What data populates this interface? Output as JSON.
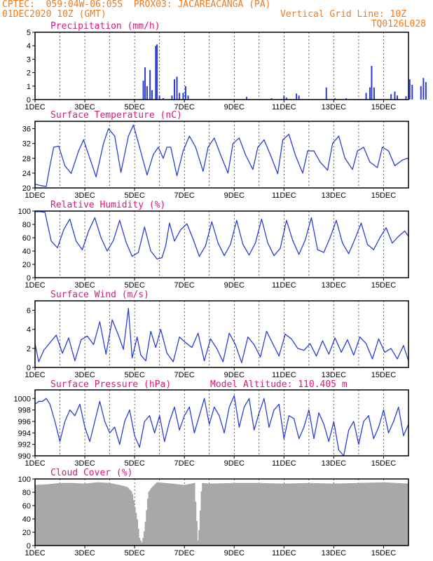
{
  "header": {
    "line1": "CPTEC:  059:04W-06:05S  PROX03: JACAREACANGA (PA)",
    "line2_left": "01DEC2020 10Z (GMT)",
    "line2_right": "Vertical Grid Line: 10Z",
    "line3_right": "TQ0126L028"
  },
  "colors": {
    "series": "#2b3fd6",
    "title": "#e0157a",
    "header": "#f07a1e",
    "cloud": "#a8a8a8"
  },
  "x_labels": [
    "1DEC",
    "3DEC",
    "5DEC",
    "7DEC",
    "9DEC",
    "11DEC",
    "13DEC",
    "15DEC"
  ],
  "x_label_days": [
    0,
    2,
    4,
    6,
    8,
    10,
    12,
    14
  ],
  "x_range_days": [
    0,
    15
  ],
  "chart_data": [
    {
      "type": "bar",
      "title": "Precipitation (mm/h)",
      "ylim": [
        0,
        5
      ],
      "yticks": [
        0,
        1,
        2,
        3,
        4,
        5
      ],
      "bars": [
        [
          4.35,
          1.4
        ],
        [
          4.42,
          2.4
        ],
        [
          4.5,
          1.0
        ],
        [
          4.62,
          2.2
        ],
        [
          4.7,
          0.7
        ],
        [
          4.85,
          4.0
        ],
        [
          4.9,
          4.1
        ],
        [
          5.0,
          0.3
        ],
        [
          5.15,
          0.1
        ],
        [
          5.5,
          0.3
        ],
        [
          5.6,
          1.5
        ],
        [
          5.7,
          1.7
        ],
        [
          5.8,
          0.5
        ],
        [
          5.95,
          0.5
        ],
        [
          6.05,
          1.0
        ],
        [
          6.15,
          0.3
        ],
        [
          8.5,
          0.2
        ],
        [
          9.5,
          0.1
        ],
        [
          10.0,
          0.3
        ],
        [
          10.1,
          0.15
        ],
        [
          10.5,
          0.45
        ],
        [
          10.6,
          0.3
        ],
        [
          11.7,
          0.9
        ],
        [
          12.05,
          0.1
        ],
        [
          12.5,
          0.1
        ],
        [
          13.3,
          0.5
        ],
        [
          13.45,
          0.9
        ],
        [
          13.52,
          2.5
        ],
        [
          13.62,
          0.9
        ],
        [
          14.3,
          0.4
        ],
        [
          14.45,
          0.6
        ],
        [
          14.55,
          0.3
        ],
        [
          14.9,
          0.25
        ],
        [
          15.05,
          1.5
        ],
        [
          15.15,
          1.1
        ],
        [
          15.5,
          1.0
        ],
        [
          15.6,
          1.6
        ],
        [
          15.7,
          1.3
        ]
      ]
    },
    {
      "type": "line",
      "title": "Surface Temperature (nC)",
      "ylim": [
        20,
        38
      ],
      "yticks": [
        20,
        24,
        28,
        32,
        36
      ],
      "x": [
        0,
        0.25,
        0.45,
        0.6,
        0.75,
        0.95,
        1.2,
        1.45,
        1.75,
        1.95,
        2.2,
        2.45,
        2.75,
        2.95,
        3.2,
        3.45,
        3.75,
        3.95,
        4.2,
        4.5,
        4.75,
        4.95,
        5.15,
        5.3,
        5.45,
        5.7,
        5.95,
        6.2,
        6.45,
        6.75,
        6.95,
        7.2,
        7.45,
        7.75,
        7.95,
        8.2,
        8.45,
        8.75,
        8.95,
        9.2,
        9.45,
        9.75,
        9.95,
        10.2,
        10.45,
        10.75,
        10.95,
        11.2,
        11.45,
        11.75,
        11.95,
        12.2,
        12.45,
        12.75,
        12.95,
        13.2,
        13.45,
        13.75,
        13.95,
        14.2,
        14.45,
        14.75,
        14.95,
        15.0
      ],
      "values": [
        21.0,
        20.6,
        20.4,
        26,
        31,
        31.3,
        26,
        23.9,
        30,
        33,
        28,
        23,
        32,
        36,
        34,
        24.2,
        34,
        37,
        31,
        23.5,
        29,
        31,
        28,
        31,
        31,
        23.3,
        30,
        34,
        31,
        24.5,
        31,
        33.5,
        29,
        24,
        32,
        33.5,
        29,
        25,
        31,
        33,
        29,
        23.8,
        33,
        34.5,
        29,
        24,
        30,
        30,
        27,
        24.8,
        32,
        34,
        28,
        25,
        30,
        31,
        27,
        25.5,
        31,
        30,
        26,
        27.5,
        28,
        27.8
      ]
    },
    {
      "type": "line",
      "title": "Relative Humidity (%)",
      "ylim": [
        0,
        100
      ],
      "yticks": [
        0,
        20,
        40,
        60,
        80,
        100
      ],
      "x": [
        0,
        0.2,
        0.4,
        0.65,
        0.9,
        1.15,
        1.4,
        1.65,
        1.9,
        2.15,
        2.4,
        2.65,
        2.9,
        3.15,
        3.4,
        3.65,
        3.9,
        4.15,
        4.4,
        4.65,
        4.9,
        5.1,
        5.25,
        5.4,
        5.6,
        5.85,
        6.1,
        6.35,
        6.6,
        6.85,
        7.1,
        7.35,
        7.6,
        7.85,
        8.1,
        8.35,
        8.6,
        8.85,
        9.1,
        9.35,
        9.6,
        9.85,
        10.1,
        10.35,
        10.6,
        10.85,
        11.1,
        11.35,
        11.6,
        11.85,
        12.1,
        12.35,
        12.6,
        12.85,
        13.1,
        13.35,
        13.6,
        13.85,
        14.1,
        14.35,
        14.6,
        14.85,
        15.0
      ],
      "values": [
        99,
        99,
        98,
        55,
        45,
        72,
        88,
        55,
        42,
        70,
        90,
        60,
        40,
        56,
        86,
        54,
        32,
        38,
        76,
        40,
        28,
        30,
        48,
        82,
        55,
        72,
        81,
        58,
        32,
        48,
        84,
        52,
        33,
        50,
        86,
        50,
        34,
        52,
        88,
        52,
        33,
        44,
        86,
        56,
        35,
        56,
        90,
        42,
        38,
        60,
        86,
        52,
        36,
        58,
        82,
        50,
        42,
        60,
        75,
        52,
        62,
        70,
        62
      ]
    },
    {
      "type": "line",
      "title": "Surface Wind (m/s)",
      "ylim": [
        0,
        7
      ],
      "yticks": [
        0,
        2,
        4,
        6
      ],
      "x": [
        0,
        0.15,
        0.35,
        0.6,
        0.85,
        1.1,
        1.35,
        1.6,
        1.85,
        2.1,
        2.35,
        2.6,
        2.85,
        3.1,
        3.35,
        3.55,
        3.75,
        3.9,
        4.1,
        4.25,
        4.45,
        4.65,
        4.85,
        5.05,
        5.3,
        5.55,
        5.8,
        6.05,
        6.3,
        6.55,
        6.8,
        7.05,
        7.3,
        7.55,
        7.8,
        8.05,
        8.3,
        8.55,
        8.8,
        9.05,
        9.3,
        9.55,
        9.8,
        10.05,
        10.3,
        10.55,
        10.8,
        11.05,
        11.3,
        11.55,
        11.8,
        12.05,
        12.3,
        12.55,
        12.8,
        13.05,
        13.3,
        13.55,
        13.8,
        14.05,
        14.3,
        14.55,
        14.8,
        15.0
      ],
      "values": [
        2.5,
        0.6,
        1.8,
        2.6,
        3.4,
        1.5,
        3.1,
        0.7,
        2.9,
        3.3,
        2.4,
        4.8,
        1.4,
        5.0,
        3.4,
        1.9,
        6.2,
        1.0,
        3.2,
        1.3,
        0.7,
        3.8,
        2.1,
        4.0,
        1.5,
        0.6,
        3.2,
        2.6,
        2.1,
        3.6,
        0.7,
        3.0,
        2.0,
        0.6,
        3.6,
        2.4,
        0.5,
        3.2,
        2.4,
        1.1,
        3.8,
        2.5,
        1.2,
        3.5,
        3.0,
        2.0,
        1.8,
        2.5,
        1.2,
        2.8,
        1.4,
        3.1,
        1.6,
        2.9,
        1.3,
        3.2,
        2.5,
        0.9,
        3.0,
        1.6,
        2.0,
        0.9,
        2.3,
        0.7
      ]
    },
    {
      "type": "line",
      "title": "Surface Pressure (hPa)",
      "subtitle": "Model Altitude: 110.405  m",
      "ylim": [
        990,
        1001.5
      ],
      "yticks": [
        990,
        992,
        994,
        996,
        998,
        1000
      ],
      "x": [
        0,
        0.15,
        0.3,
        0.45,
        0.6,
        0.8,
        1.0,
        1.2,
        1.4,
        1.6,
        1.8,
        2.0,
        2.2,
        2.4,
        2.6,
        2.8,
        3.0,
        3.2,
        3.4,
        3.6,
        3.8,
        4.0,
        4.2,
        4.4,
        4.6,
        4.8,
        5.0,
        5.2,
        5.4,
        5.6,
        5.8,
        6.0,
        6.2,
        6.4,
        6.6,
        6.8,
        7.0,
        7.2,
        7.4,
        7.6,
        7.8,
        8.0,
        8.2,
        8.4,
        8.6,
        8.8,
        9.0,
        9.2,
        9.4,
        9.6,
        9.8,
        10.0,
        10.2,
        10.4,
        10.6,
        10.8,
        11.0,
        11.2,
        11.4,
        11.6,
        11.8,
        12.0,
        12.2,
        12.4,
        12.6,
        12.8,
        13.0,
        13.2,
        13.4,
        13.6,
        13.8,
        14.0,
        14.2,
        14.4,
        14.6,
        14.8,
        15.0
      ],
      "values": [
        999,
        999.5,
        999.5,
        1000,
        999,
        996,
        992.5,
        996,
        998,
        997,
        999,
        995,
        992.5,
        996,
        999.5,
        996,
        994,
        995,
        992,
        996,
        998,
        993.5,
        991.5,
        996,
        997,
        994,
        997,
        992.5,
        996,
        998.5,
        994.5,
        997,
        998.5,
        994,
        997,
        1000,
        995.5,
        998.5,
        997,
        994,
        998.5,
        1000.5,
        995,
        998.5,
        1000,
        994.5,
        997.5,
        1000,
        995,
        998,
        999,
        993,
        997,
        996.5,
        993,
        995,
        998,
        993,
        997.5,
        995.5,
        992.5,
        996,
        991,
        990,
        994.5,
        996,
        992,
        996,
        997,
        993,
        995,
        998,
        994,
        996,
        998.5,
        993.5,
        995.5
      ]
    },
    {
      "type": "bar",
      "title": "Cloud Cover (%)",
      "ylim": [
        0,
        100
      ],
      "yticks": [
        0,
        20,
        40,
        60,
        80,
        100
      ],
      "x": [
        0,
        0.5,
        1.0,
        1.5,
        2.0,
        2.5,
        3.0,
        3.5,
        3.7,
        3.9,
        4.1,
        4.2,
        4.3,
        4.4,
        4.55,
        4.7,
        4.9,
        5.5,
        6.0,
        6.4,
        6.55,
        6.7,
        7.0,
        8.0,
        9.0,
        10.0,
        11.0,
        12.0,
        13.0,
        14.0,
        15.0
      ],
      "values": [
        91,
        92,
        94,
        94,
        93,
        95,
        94,
        90,
        88,
        80,
        40,
        10,
        4,
        25,
        80,
        88,
        95,
        93,
        91,
        94,
        1,
        94,
        93,
        94,
        94,
        93,
        94,
        93,
        94,
        95,
        93
      ]
    }
  ]
}
